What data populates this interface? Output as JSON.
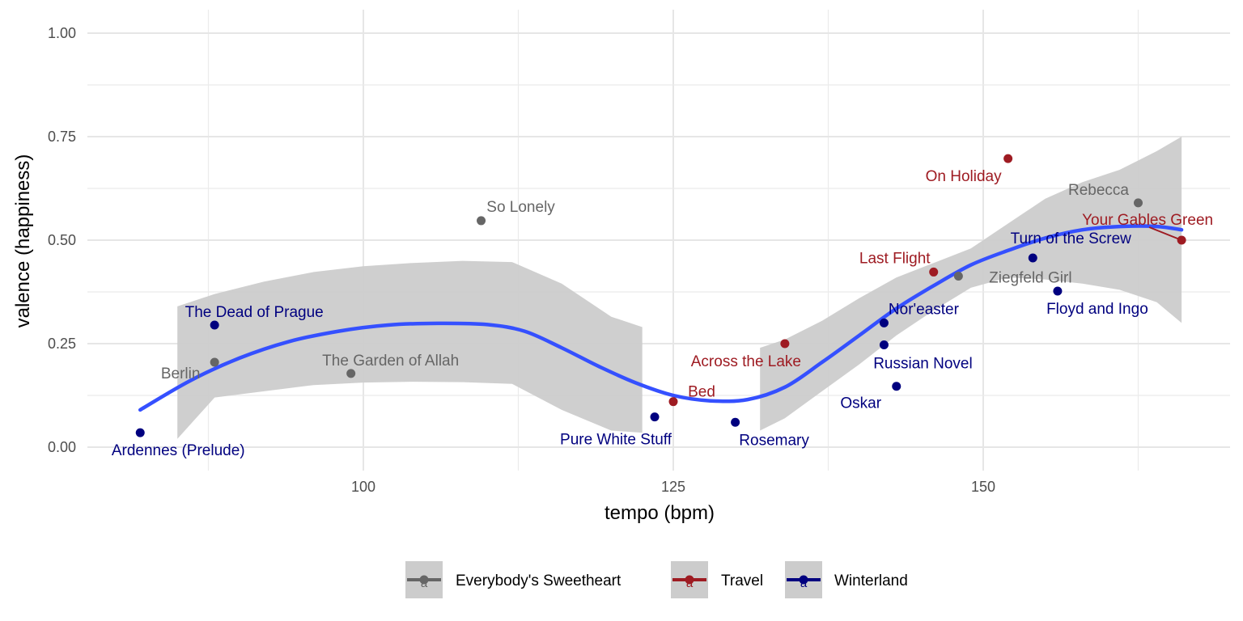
{
  "chart_data": {
    "type": "scatter",
    "xlabel": "tempo (bpm)",
    "ylabel": "valence (happiness)",
    "xlim": [
      78,
      170
    ],
    "ylim": [
      -0.05,
      1.05
    ],
    "x_ticks": [
      100,
      125,
      150
    ],
    "x_tick_labels": [
      "100",
      "125",
      "150"
    ],
    "y_ticks": [
      0,
      0.25,
      0.5,
      0.75,
      1.0
    ],
    "y_tick_labels": [
      "0.00",
      "0.25",
      "0.50",
      "0.75",
      "1.00"
    ],
    "grid": true,
    "legend_position": "bottom",
    "legend_key_glyph": "a",
    "colors": {
      "Everybody's Sweetheart": "#666666",
      "Travel": "#9e1b22",
      "Winterland": "#00007f"
    },
    "series": [
      {
        "name": "Everybody's Sweetheart",
        "points": [
          {
            "label": "Berlin",
            "x": 88,
            "y": 0.205
          },
          {
            "label": "The Garden of Allah",
            "x": 99,
            "y": 0.178
          },
          {
            "label": "So Lonely",
            "x": 109.5,
            "y": 0.547
          },
          {
            "label": "Ziegfeld Girl",
            "x": 148,
            "y": 0.413
          },
          {
            "label": "Rebecca",
            "x": 162.5,
            "y": 0.59
          }
        ]
      },
      {
        "name": "Travel",
        "points": [
          {
            "label": "Bed",
            "x": 125,
            "y": 0.11
          },
          {
            "label": "Across the Lake",
            "x": 134,
            "y": 0.25
          },
          {
            "label": "Last Flight",
            "x": 146,
            "y": 0.423
          },
          {
            "label": "On Holiday",
            "x": 152,
            "y": 0.697
          },
          {
            "label": "Your Gables Green",
            "x": 166,
            "y": 0.5
          }
        ]
      },
      {
        "name": "Winterland",
        "points": [
          {
            "label": "Ardennes (Prelude)",
            "x": 82,
            "y": 0.035
          },
          {
            "label": "The Dead of Prague",
            "x": 88,
            "y": 0.295
          },
          {
            "label": "Pure White Stuff",
            "x": 123.5,
            "y": 0.073
          },
          {
            "label": "Rosemary",
            "x": 130,
            "y": 0.06
          },
          {
            "label": "Nor'easter",
            "x": 142,
            "y": 0.3
          },
          {
            "label": "Russian Novel",
            "x": 142,
            "y": 0.247
          },
          {
            "label": "Oskar",
            "x": 143,
            "y": 0.147
          },
          {
            "label": "Turn of the Screw",
            "x": 154,
            "y": 0.457
          },
          {
            "label": "Floyd and Ingo",
            "x": 156,
            "y": 0.377
          }
        ]
      }
    ],
    "smooth": {
      "color": "#3550ff",
      "band_color": "#cccccc",
      "segments": [
        {
          "x": [
            82,
            88,
            92,
            96,
            100,
            104,
            108,
            112,
            116,
            120,
            122.5
          ],
          "y": [
            0.09,
            0.2,
            0.245,
            0.278,
            0.294,
            0.3,
            0.298,
            0.286,
            0.226,
            0.162,
            0.13
          ],
          "ymin": [
            null,
            null,
            null,
            null,
            null,
            null,
            null,
            null,
            null,
            null,
            null
          ],
          "ymax": [
            null,
            null,
            null,
            null,
            null,
            null,
            null,
            null,
            null,
            null,
            null
          ]
        }
      ],
      "line": {
        "x": [
          82,
          86,
          90,
          94,
          98,
          102,
          106,
          110,
          113,
          116,
          119,
          122,
          125,
          128,
          131,
          134,
          137,
          140,
          143,
          146,
          149,
          152,
          155,
          158,
          161,
          164,
          166
        ],
        "y": [
          0.09,
          0.16,
          0.215,
          0.255,
          0.28,
          0.295,
          0.299,
          0.296,
          0.28,
          0.24,
          0.195,
          0.155,
          0.125,
          0.112,
          0.115,
          0.145,
          0.205,
          0.27,
          0.335,
          0.39,
          0.44,
          0.475,
          0.505,
          0.525,
          0.533,
          0.533,
          0.525
        ]
      },
      "band": {
        "left": {
          "x": [
            85,
            88,
            92,
            96,
            100,
            104,
            108,
            112,
            116,
            120,
            122.5
          ],
          "upper": [
            0.34,
            0.37,
            0.4,
            0.423,
            0.437,
            0.445,
            0.45,
            0.447,
            0.395,
            0.315,
            0.29
          ],
          "lower": [
            0.02,
            0.12,
            0.135,
            0.15,
            0.156,
            0.158,
            0.157,
            0.153,
            0.09,
            0.04,
            0.035
          ]
        },
        "right": {
          "x": [
            132,
            134,
            137,
            140,
            143,
            146,
            149,
            152,
            155,
            158,
            161,
            164,
            166
          ],
          "upper": [
            0.24,
            0.26,
            0.305,
            0.36,
            0.41,
            0.445,
            0.48,
            0.54,
            0.6,
            0.64,
            0.67,
            0.715,
            0.75
          ],
          "lower": [
            0.04,
            0.07,
            0.135,
            0.2,
            0.27,
            0.33,
            0.385,
            0.41,
            0.405,
            0.395,
            0.38,
            0.35,
            0.3
          ]
        }
      }
    }
  }
}
